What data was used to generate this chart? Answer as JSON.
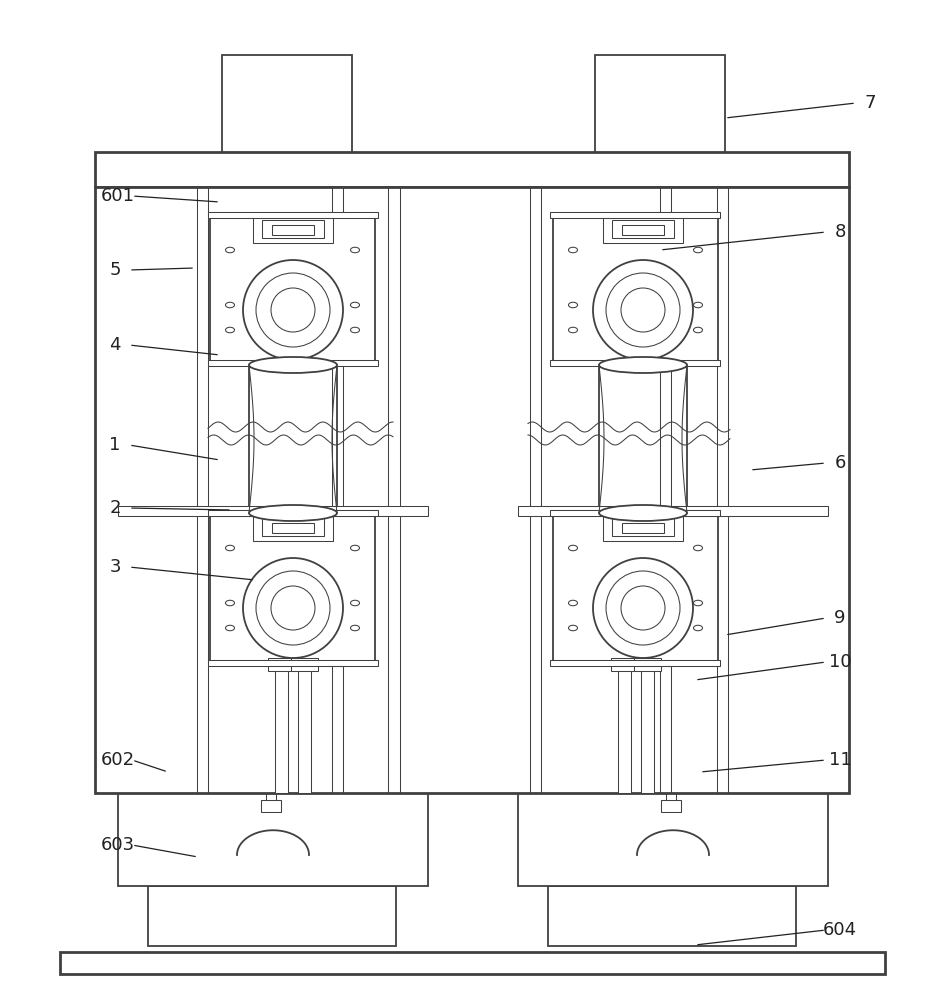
{
  "bg": "#ffffff",
  "lc": "#404040",
  "lw": 1.3,
  "tlw": 0.75,
  "thk": 2.0,
  "fs": 13,
  "fc": "#222222",
  "annotations": [
    [
      "1",
      115,
      445,
      220,
      460
    ],
    [
      "2",
      115,
      508,
      232,
      510
    ],
    [
      "3",
      115,
      567,
      255,
      580
    ],
    [
      "4",
      115,
      345,
      220,
      355
    ],
    [
      "5",
      115,
      270,
      195,
      268
    ],
    [
      "6",
      840,
      463,
      750,
      470
    ],
    [
      "7",
      870,
      103,
      725,
      118
    ],
    [
      "8",
      840,
      232,
      660,
      250
    ],
    [
      "9",
      840,
      618,
      725,
      635
    ],
    [
      "10",
      840,
      662,
      695,
      680
    ],
    [
      "11",
      840,
      760,
      700,
      772
    ],
    [
      "601",
      118,
      196,
      220,
      202
    ],
    [
      "602",
      118,
      760,
      168,
      772
    ],
    [
      "603",
      118,
      845,
      198,
      857
    ],
    [
      "604",
      840,
      930,
      695,
      945
    ]
  ]
}
